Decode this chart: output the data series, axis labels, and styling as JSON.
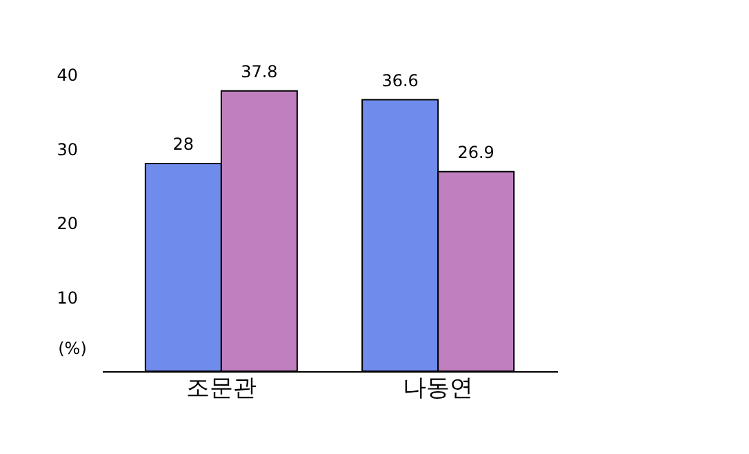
{
  "chart_data": {
    "type": "bar",
    "categories": [
      "조문관",
      "나동연"
    ],
    "series": [
      {
        "color": "#6f8cec",
        "values": [
          28,
          36.6
        ]
      },
      {
        "color": "#c080c0",
        "values": [
          37.8,
          26.9
        ]
      }
    ],
    "ylabel": "(%)",
    "ylim": [
      0,
      40
    ],
    "yticks": [
      10,
      20,
      30,
      40
    ],
    "data_labels": true,
    "grid": false
  }
}
